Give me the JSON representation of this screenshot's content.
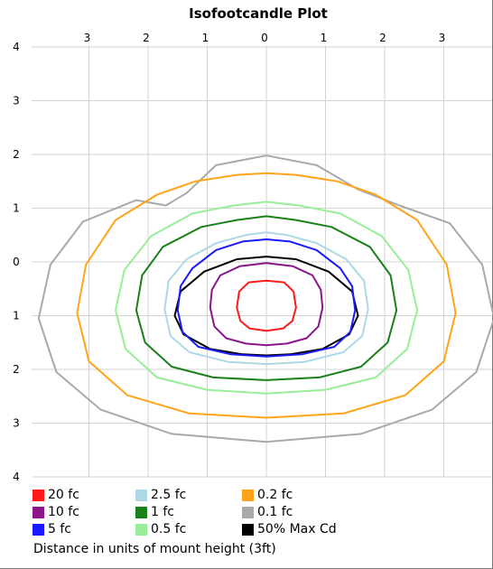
{
  "chart_data": {
    "type": "contour",
    "title": "Isofootcandle Plot",
    "xlabel": "Distance in units of mount height (3ft)",
    "ylabel": "",
    "x_tick_labels": [
      "3",
      "2",
      "1",
      "0",
      "1",
      "2",
      "3"
    ],
    "x_tick_values": [
      -3,
      -2,
      -1,
      0,
      1,
      2,
      3
    ],
    "y_tick_labels": [
      "4",
      "3",
      "2",
      "1",
      "0",
      "1",
      "2",
      "3",
      "4"
    ],
    "y_tick_values": [
      -4,
      -3,
      -2,
      -1,
      0,
      1,
      2,
      3,
      4
    ],
    "xlim": [
      -4.8,
      3.5
    ],
    "ylim": [
      -4.2,
      4.2
    ],
    "grid": true,
    "legend_placement": "bottom",
    "series": [
      {
        "name": "20 fc",
        "color": "#ff1a1a",
        "points": [
          [
            -0.5,
            -0.85
          ],
          [
            -0.46,
            -0.55
          ],
          [
            -0.3,
            -0.38
          ],
          [
            0,
            -0.35
          ],
          [
            0.3,
            -0.38
          ],
          [
            0.46,
            -0.55
          ],
          [
            0.5,
            -0.85
          ],
          [
            0.44,
            -1.1
          ],
          [
            0.28,
            -1.24
          ],
          [
            0,
            -1.28
          ],
          [
            -0.28,
            -1.24
          ],
          [
            -0.44,
            -1.1
          ]
        ]
      },
      {
        "name": "10 fc",
        "color": "#8b168b",
        "points": [
          [
            -0.95,
            -0.85
          ],
          [
            -0.92,
            -0.52
          ],
          [
            -0.78,
            -0.25
          ],
          [
            -0.45,
            -0.08
          ],
          [
            0,
            -0.02
          ],
          [
            0.45,
            -0.08
          ],
          [
            0.78,
            -0.25
          ],
          [
            0.92,
            -0.52
          ],
          [
            0.95,
            -0.85
          ],
          [
            0.88,
            -1.2
          ],
          [
            0.68,
            -1.42
          ],
          [
            0.35,
            -1.52
          ],
          [
            0,
            -1.55
          ],
          [
            -0.35,
            -1.52
          ],
          [
            -0.68,
            -1.42
          ],
          [
            -0.88,
            -1.2
          ]
        ]
      },
      {
        "name": "5 fc",
        "color": "#1a1aff",
        "points": [
          [
            -1.5,
            -0.9
          ],
          [
            -1.45,
            -0.45
          ],
          [
            -1.25,
            -0.12
          ],
          [
            -0.85,
            0.22
          ],
          [
            -0.4,
            0.38
          ],
          [
            0,
            0.42
          ],
          [
            0.4,
            0.38
          ],
          [
            0.85,
            0.22
          ],
          [
            1.25,
            -0.12
          ],
          [
            1.45,
            -0.45
          ],
          [
            1.5,
            -0.9
          ],
          [
            1.42,
            -1.3
          ],
          [
            1.15,
            -1.58
          ],
          [
            0.6,
            -1.72
          ],
          [
            0,
            -1.76
          ],
          [
            -0.6,
            -1.72
          ],
          [
            -1.15,
            -1.58
          ],
          [
            -1.42,
            -1.3
          ]
        ]
      },
      {
        "name": "2.5 fc",
        "color": "#add8e6",
        "points": [
          [
            -1.72,
            -0.88
          ],
          [
            -1.65,
            -0.35
          ],
          [
            -1.35,
            0.05
          ],
          [
            -0.85,
            0.35
          ],
          [
            -0.35,
            0.5
          ],
          [
            0,
            0.55
          ],
          [
            0.35,
            0.5
          ],
          [
            0.85,
            0.35
          ],
          [
            1.35,
            0.05
          ],
          [
            1.65,
            -0.35
          ],
          [
            1.72,
            -0.88
          ],
          [
            1.62,
            -1.38
          ],
          [
            1.3,
            -1.68
          ],
          [
            0.65,
            -1.86
          ],
          [
            0,
            -1.9
          ],
          [
            -0.65,
            -1.86
          ],
          [
            -1.3,
            -1.68
          ],
          [
            -1.62,
            -1.38
          ]
        ]
      },
      {
        "name": "1 fc",
        "color": "#1a801a",
        "points": [
          [
            -2.2,
            -0.9
          ],
          [
            -2.1,
            -0.25
          ],
          [
            -1.75,
            0.28
          ],
          [
            -1.1,
            0.65
          ],
          [
            -0.5,
            0.78
          ],
          [
            0,
            0.85
          ],
          [
            0.5,
            0.78
          ],
          [
            1.1,
            0.65
          ],
          [
            1.75,
            0.28
          ],
          [
            2.1,
            -0.25
          ],
          [
            2.2,
            -0.9
          ],
          [
            2.05,
            -1.5
          ],
          [
            1.6,
            -1.95
          ],
          [
            0.9,
            -2.15
          ],
          [
            0,
            -2.2
          ],
          [
            -0.9,
            -2.15
          ],
          [
            -1.6,
            -1.95
          ],
          [
            -2.05,
            -1.5
          ]
        ]
      },
      {
        "name": "0.5 fc",
        "color": "#98ee98",
        "points": [
          [
            -2.55,
            -0.9
          ],
          [
            -2.4,
            -0.15
          ],
          [
            -1.95,
            0.48
          ],
          [
            -1.25,
            0.9
          ],
          [
            -0.55,
            1.05
          ],
          [
            0,
            1.12
          ],
          [
            0.55,
            1.05
          ],
          [
            1.25,
            0.9
          ],
          [
            1.95,
            0.48
          ],
          [
            2.4,
            -0.15
          ],
          [
            2.55,
            -0.9
          ],
          [
            2.38,
            -1.62
          ],
          [
            1.85,
            -2.15
          ],
          [
            1.0,
            -2.38
          ],
          [
            0,
            -2.45
          ],
          [
            -1.0,
            -2.38
          ],
          [
            -1.85,
            -2.15
          ],
          [
            -2.38,
            -1.62
          ]
        ]
      },
      {
        "name": "0.2 fc",
        "color": "#ffa31a",
        "points": [
          [
            -3.2,
            -0.95
          ],
          [
            -3.05,
            -0.05
          ],
          [
            -2.55,
            0.78
          ],
          [
            -1.85,
            1.25
          ],
          [
            -1.2,
            1.5
          ],
          [
            -0.5,
            1.62
          ],
          [
            0,
            1.65
          ],
          [
            0.5,
            1.62
          ],
          [
            1.2,
            1.5
          ],
          [
            1.85,
            1.25
          ],
          [
            2.55,
            0.78
          ],
          [
            3.05,
            -0.05
          ],
          [
            3.2,
            -0.95
          ],
          [
            3.0,
            -1.85
          ],
          [
            2.35,
            -2.48
          ],
          [
            1.3,
            -2.82
          ],
          [
            0,
            -2.9
          ],
          [
            -1.3,
            -2.82
          ],
          [
            -2.35,
            -2.48
          ],
          [
            -3.0,
            -1.85
          ]
        ]
      },
      {
        "name": "0.1 fc",
        "color": "#a9a9a9",
        "points": [
          [
            -3.85,
            -1.05
          ],
          [
            -3.65,
            -0.05
          ],
          [
            -3.1,
            0.75
          ],
          [
            -2.2,
            1.15
          ],
          [
            -1.7,
            1.05
          ],
          [
            -1.35,
            1.28
          ],
          [
            -0.85,
            1.8
          ],
          [
            0,
            1.98
          ],
          [
            0.85,
            1.8
          ],
          [
            1.55,
            1.35
          ],
          [
            2.25,
            1.05
          ],
          [
            3.1,
            0.72
          ],
          [
            3.65,
            -0.05
          ],
          [
            3.85,
            -1.05
          ],
          [
            3.55,
            -2.05
          ],
          [
            2.8,
            -2.75
          ],
          [
            1.6,
            -3.2
          ],
          [
            0,
            -3.35
          ],
          [
            -1.6,
            -3.2
          ],
          [
            -2.8,
            -2.75
          ],
          [
            -3.55,
            -2.05
          ]
        ]
      },
      {
        "name": "50% Max Cd",
        "color": "#000000",
        "points": [
          [
            -1.55,
            -1.0
          ],
          [
            -1.45,
            -0.55
          ],
          [
            -1.05,
            -0.18
          ],
          [
            -0.5,
            0.05
          ],
          [
            0,
            0.1
          ],
          [
            0.5,
            0.05
          ],
          [
            1.05,
            -0.18
          ],
          [
            1.45,
            -0.55
          ],
          [
            1.55,
            -1.0
          ],
          [
            1.4,
            -1.35
          ],
          [
            0.95,
            -1.62
          ],
          [
            0.4,
            -1.72
          ],
          [
            0,
            -1.74
          ],
          [
            -0.4,
            -1.72
          ],
          [
            -0.95,
            -1.62
          ],
          [
            -1.4,
            -1.35
          ]
        ]
      }
    ]
  }
}
